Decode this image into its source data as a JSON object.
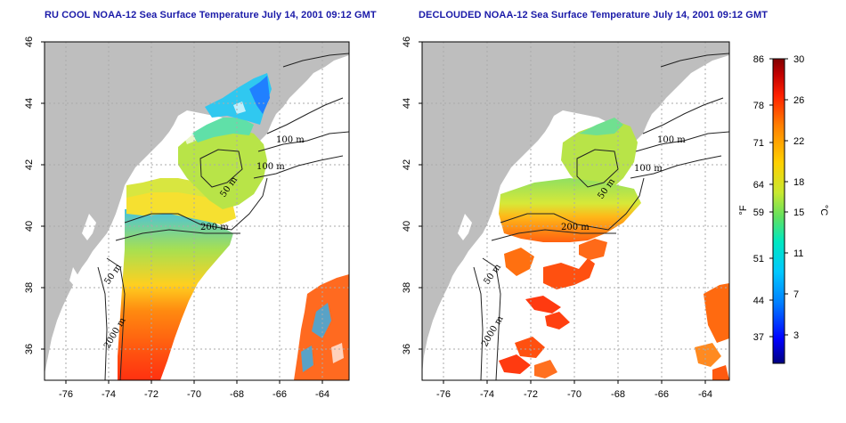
{
  "panels": [
    {
      "title": "RU COOL NOAA-12 Sea Surface Temperature July 14, 2001 09:12 GMT",
      "contour_labels": [
        "100 m",
        "100 m",
        "50 m",
        "200 m",
        "50 m",
        "2000 m"
      ]
    },
    {
      "title": "DECLOUDED NOAA-12 Sea Surface Temperature July 14, 2001 09:12 GMT",
      "contour_labels": [
        "100 m",
        "100 m",
        "50 m",
        "200 m",
        "50 m",
        "2000 m"
      ]
    }
  ],
  "axes": {
    "x_ticks": [
      "-76",
      "-74",
      "-72",
      "-70",
      "-68",
      "-66",
      "-64"
    ],
    "y_ticks": [
      "46",
      "44",
      "42",
      "40",
      "38",
      "36"
    ]
  },
  "colorbar": {
    "fahrenheit_label": "°F",
    "celsius_label": "°C",
    "fahrenheit_ticks": [
      "86",
      "78",
      "71",
      "64",
      "59",
      "51",
      "44",
      "37"
    ],
    "celsius_ticks": [
      "30",
      "26",
      "22",
      "18",
      "15",
      "11",
      "7",
      "3"
    ],
    "colors": [
      "#000080",
      "#0000ff",
      "#0080ff",
      "#00c8ff",
      "#00e8c0",
      "#60e060",
      "#c8e830",
      "#ffd000",
      "#ff8000",
      "#ff2000",
      "#c00000",
      "#800000"
    ]
  }
}
